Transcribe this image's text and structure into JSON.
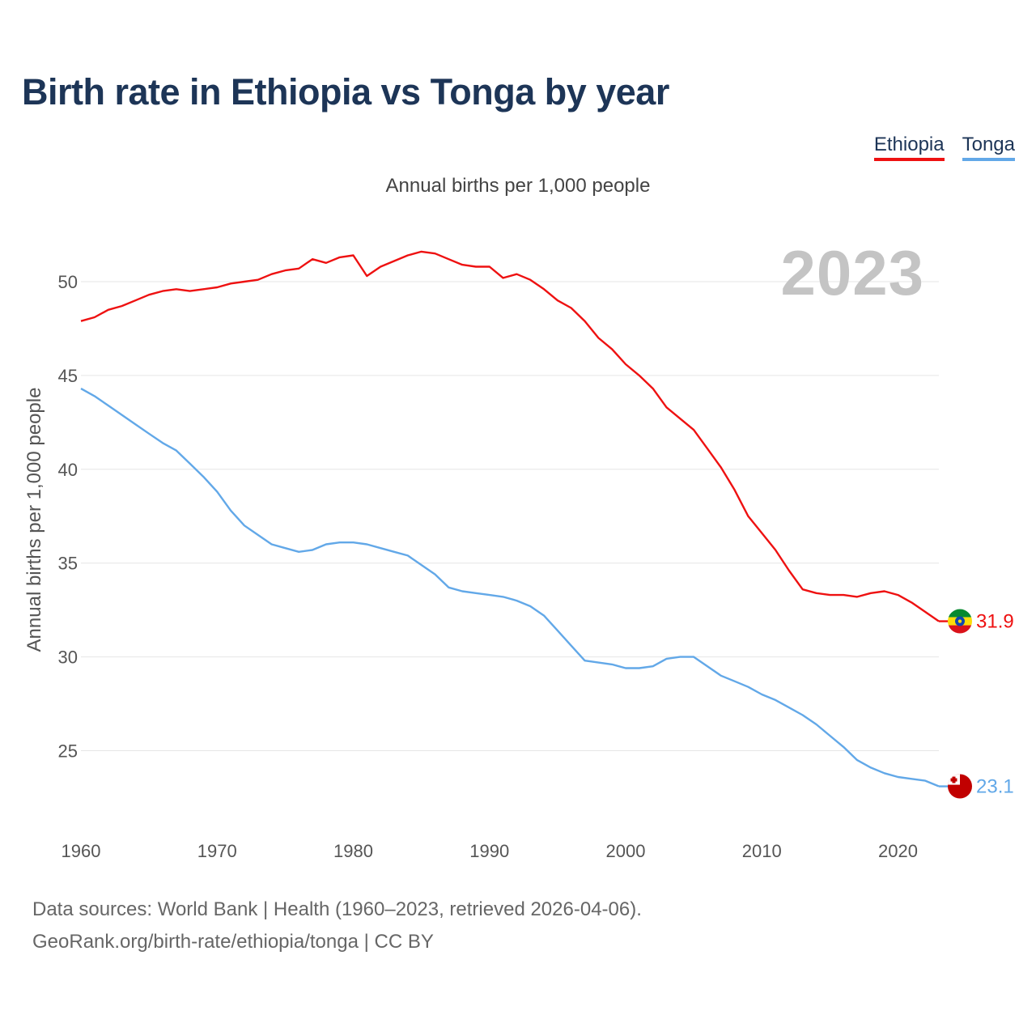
{
  "title": "Birth rate in Ethiopia vs Tonga by year",
  "subtitle": "Annual births per 1,000 people",
  "year_badge": "2023",
  "legend": [
    {
      "label": "Ethiopia",
      "color": "#ee1111"
    },
    {
      "label": "Tonga",
      "color": "#62a8e8"
    }
  ],
  "source_line1": "Data sources: World Bank | Health (1960–2023, retrieved 2026-04-06).",
  "source_line2": "GeoRank.org/birth-rate/ethiopia/tonga | CC BY",
  "chart_data": {
    "type": "line",
    "title": "Birth rate in Ethiopia vs Tonga by year",
    "ylabel": "Annual births per 1,000 people",
    "xlabel": "",
    "xlim": [
      1960,
      2023
    ],
    "ylim": [
      21,
      53
    ],
    "yticks": [
      25,
      30,
      35,
      40,
      45,
      50
    ],
    "xticks": [
      1960,
      1970,
      1980,
      1990,
      2000,
      2010,
      2020
    ],
    "grid": "horizontal",
    "x": [
      1960,
      1961,
      1962,
      1963,
      1964,
      1965,
      1966,
      1967,
      1968,
      1969,
      1970,
      1971,
      1972,
      1973,
      1974,
      1975,
      1976,
      1977,
      1978,
      1979,
      1980,
      1981,
      1982,
      1983,
      1984,
      1985,
      1986,
      1987,
      1988,
      1989,
      1990,
      1991,
      1992,
      1993,
      1994,
      1995,
      1996,
      1997,
      1998,
      1999,
      2000,
      2001,
      2002,
      2003,
      2004,
      2005,
      2006,
      2007,
      2008,
      2009,
      2010,
      2011,
      2012,
      2013,
      2014,
      2015,
      2016,
      2017,
      2018,
      2019,
      2020,
      2021,
      2022,
      2023
    ],
    "series": [
      {
        "name": "Ethiopia",
        "color": "#ee1111",
        "end_label": "31.9",
        "values": [
          47.9,
          48.1,
          48.5,
          48.7,
          49.0,
          49.3,
          49.5,
          49.6,
          49.5,
          49.6,
          49.7,
          49.9,
          50.0,
          50.1,
          50.4,
          50.6,
          50.7,
          51.2,
          51.0,
          51.3,
          51.4,
          50.3,
          50.8,
          51.1,
          51.4,
          51.6,
          51.5,
          51.2,
          50.9,
          50.8,
          50.8,
          50.2,
          50.4,
          50.1,
          49.6,
          49.0,
          48.6,
          47.9,
          47.0,
          46.4,
          45.6,
          45.0,
          44.3,
          43.3,
          42.7,
          42.1,
          41.1,
          40.1,
          38.9,
          37.5,
          36.6,
          35.7,
          34.6,
          33.6,
          33.4,
          33.3,
          33.3,
          33.2,
          33.4,
          33.5,
          33.3,
          32.9,
          32.4,
          31.9
        ]
      },
      {
        "name": "Tonga",
        "color": "#62a8e8",
        "end_label": "23.1",
        "values": [
          44.3,
          43.9,
          43.4,
          42.9,
          42.4,
          41.9,
          41.4,
          41.0,
          40.3,
          39.6,
          38.8,
          37.8,
          37.0,
          36.5,
          36.0,
          35.8,
          35.6,
          35.7,
          36.0,
          36.1,
          36.1,
          36.0,
          35.8,
          35.6,
          35.4,
          34.9,
          34.4,
          33.7,
          33.5,
          33.4,
          33.3,
          33.2,
          33.0,
          32.7,
          32.2,
          31.4,
          30.6,
          29.8,
          29.7,
          29.6,
          29.4,
          29.4,
          29.5,
          29.9,
          30.0,
          30.0,
          29.5,
          29.0,
          28.7,
          28.4,
          28.0,
          27.7,
          27.3,
          26.9,
          26.4,
          25.8,
          25.2,
          24.5,
          24.1,
          23.8,
          23.6,
          23.5,
          23.4,
          23.1
        ]
      }
    ]
  }
}
